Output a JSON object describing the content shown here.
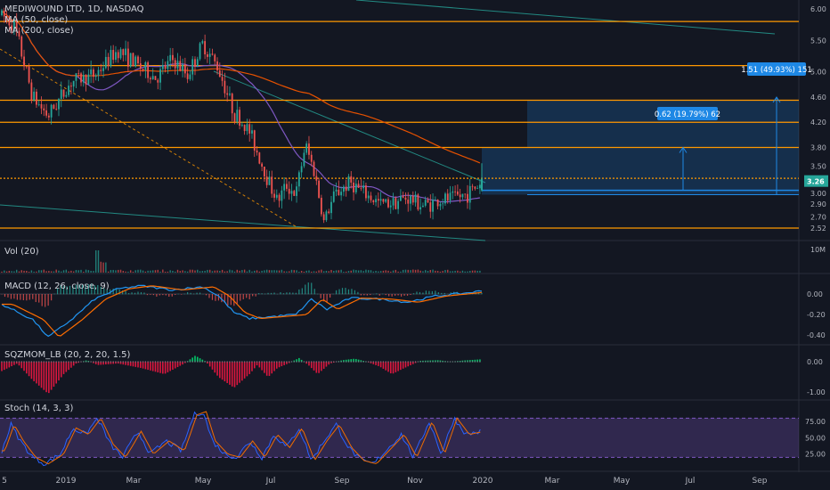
{
  "legend": {
    "title": "MEDIWOUND LTD, 1D, NASDAQ",
    "ma1": "MA (50, close)",
    "ma2": "MA (200, close)",
    "vol": "Vol (20)",
    "macd": "MACD (12, 26, close, 9)",
    "sqz": "SQZMOM_LB (20, 2, 20, 1.5)",
    "stoch": "Stoch (14, 3, 3)"
  },
  "colors": {
    "background": "#131722",
    "up": "#26a69a",
    "down": "#ef5350",
    "hline": "#ff9800",
    "ma50": "#7e57c2",
    "ma200": "#e65100",
    "trend": "#26a69a",
    "target_box": "#1e88e5",
    "macd_line": "#2196f3",
    "signal_line": "#ff6d00",
    "sqz_up": "#00e676",
    "sqz_down": "#ff1744",
    "stoch_k": "#2962ff",
    "stoch_d": "#ef6c00",
    "stoch_band": "#7e57c2"
  },
  "chart_data": [
    {
      "type": "candlestick",
      "title": "MEDIWOUND LTD, 1D, NASDAQ",
      "ylim": [
        2.42,
        6.12
      ],
      "y_ticks": [
        "6.00",
        "5.50",
        "5.00",
        "4.60",
        "4.20",
        "3.80",
        "3.50",
        "3.26",
        "3.00",
        "2.90",
        "2.70",
        "2.52"
      ],
      "last_price_label": "3.26",
      "horizontal_levels": [
        5.8,
        5.1,
        4.55,
        4.2,
        3.8,
        3.31,
        2.52
      ],
      "x_ticks": [
        "5",
        "2019",
        "Mar",
        "May",
        "Jul",
        "Sep",
        "Nov",
        "2020",
        "Mar",
        "May",
        "Jul",
        "Sep"
      ],
      "price_path": [
        [
          0,
          5.9
        ],
        [
          8,
          5.75
        ],
        [
          20,
          4.6
        ],
        [
          30,
          4.3
        ],
        [
          45,
          4.85
        ],
        [
          60,
          4.95
        ],
        [
          75,
          5.35
        ],
        [
          88,
          5.1
        ],
        [
          100,
          4.9
        ],
        [
          110,
          5.2
        ],
        [
          120,
          4.95
        ],
        [
          130,
          5.45
        ],
        [
          140,
          5.05
        ],
        [
          150,
          4.35
        ],
        [
          160,
          4.05
        ],
        [
          170,
          3.4
        ],
        [
          178,
          2.95
        ],
        [
          184,
          3.2
        ],
        [
          190,
          3.05
        ],
        [
          196,
          3.85
        ],
        [
          202,
          3.4
        ],
        [
          208,
          2.62
        ],
        [
          215,
          3.05
        ],
        [
          225,
          3.25
        ],
        [
          235,
          3.05
        ],
        [
          245,
          2.9
        ],
        [
          255,
          2.95
        ],
        [
          262,
          3.0
        ],
        [
          272,
          2.88
        ],
        [
          282,
          2.95
        ],
        [
          292,
          3.0
        ],
        [
          300,
          3.05
        ],
        [
          310,
          3.25
        ]
      ],
      "annotations": [
        {
          "label": "0.62 (19.79%) 62",
          "target": 3.8
        },
        {
          "label": "1.51 (49.93%) 151",
          "target": 4.6
        }
      ],
      "target_zone": [
        3.05,
        4.55
      ]
    },
    {
      "type": "bar",
      "title": "Vol (20)",
      "y_ticks": [
        "10M"
      ]
    },
    {
      "type": "line",
      "title": "MACD (12, 26, close, 9)",
      "ylim": [
        -0.46,
        0.1
      ],
      "y_ticks": [
        "0.00",
        "-0.20",
        "-0.40"
      ],
      "macd_path": [
        [
          0,
          -0.1
        ],
        [
          20,
          -0.25
        ],
        [
          30,
          -0.42
        ],
        [
          45,
          -0.25
        ],
        [
          60,
          -0.05
        ],
        [
          75,
          0.05
        ],
        [
          90,
          0.08
        ],
        [
          110,
          0.04
        ],
        [
          130,
          0.07
        ],
        [
          140,
          -0.02
        ],
        [
          150,
          -0.18
        ],
        [
          160,
          -0.24
        ],
        [
          175,
          -0.22
        ],
        [
          190,
          -0.2
        ],
        [
          200,
          -0.05
        ],
        [
          210,
          -0.15
        ],
        [
          225,
          -0.04
        ],
        [
          245,
          -0.05
        ],
        [
          262,
          -0.08
        ],
        [
          280,
          -0.02
        ],
        [
          300,
          0.01
        ],
        [
          310,
          0.03
        ]
      ]
    },
    {
      "type": "bar",
      "title": "SQZMOM_LB (20, 2, 20, 1.5)",
      "ylim": [
        -1.1,
        0.2
      ],
      "y_ticks": [
        "0.00",
        "-1.00"
      ],
      "momentum_path": [
        [
          0,
          -0.3
        ],
        [
          10,
          -0.05
        ],
        [
          20,
          -0.6
        ],
        [
          30,
          -1.05
        ],
        [
          40,
          -0.4
        ],
        [
          48,
          -0.05
        ],
        [
          55,
          0.05
        ],
        [
          62,
          -0.1
        ],
        [
          75,
          -0.05
        ],
        [
          90,
          -0.2
        ],
        [
          105,
          -0.4
        ],
        [
          118,
          -0.05
        ],
        [
          125,
          0.2
        ],
        [
          132,
          0.0
        ],
        [
          140,
          -0.5
        ],
        [
          150,
          -0.85
        ],
        [
          160,
          -0.4
        ],
        [
          165,
          -0.1
        ],
        [
          172,
          -0.5
        ],
        [
          178,
          -0.2
        ],
        [
          185,
          -0.05
        ],
        [
          192,
          0.12
        ],
        [
          198,
          -0.1
        ],
        [
          204,
          -0.4
        ],
        [
          212,
          -0.05
        ],
        [
          220,
          0.05
        ],
        [
          228,
          0.1
        ],
        [
          236,
          0.0
        ],
        [
          244,
          -0.15
        ],
        [
          252,
          -0.4
        ],
        [
          260,
          -0.2
        ],
        [
          270,
          0.03
        ],
        [
          282,
          0.05
        ],
        [
          290,
          0.0
        ],
        [
          298,
          0.04
        ],
        [
          310,
          0.08
        ]
      ]
    },
    {
      "type": "line",
      "title": "Stoch (14, 3, 3)",
      "ylim": [
        0,
        100
      ],
      "y_ticks": [
        "75.00",
        "50.00",
        "25.00"
      ],
      "band": [
        20,
        80
      ],
      "stoch_path": [
        [
          0,
          30
        ],
        [
          6,
          70
        ],
        [
          12,
          45
        ],
        [
          20,
          20
        ],
        [
          28,
          10
        ],
        [
          38,
          25
        ],
        [
          46,
          65
        ],
        [
          54,
          55
        ],
        [
          62,
          80
        ],
        [
          70,
          40
        ],
        [
          78,
          20
        ],
        [
          88,
          60
        ],
        [
          96,
          25
        ],
        [
          106,
          45
        ],
        [
          116,
          30
        ],
        [
          124,
          85
        ],
        [
          130,
          90
        ],
        [
          136,
          45
        ],
        [
          144,
          25
        ],
        [
          152,
          20
        ],
        [
          160,
          45
        ],
        [
          168,
          20
        ],
        [
          176,
          55
        ],
        [
          184,
          35
        ],
        [
          192,
          65
        ],
        [
          200,
          15
        ],
        [
          208,
          45
        ],
        [
          216,
          70
        ],
        [
          224,
          35
        ],
        [
          232,
          15
        ],
        [
          240,
          10
        ],
        [
          248,
          30
        ],
        [
          258,
          55
        ],
        [
          266,
          20
        ],
        [
          276,
          75
        ],
        [
          284,
          25
        ],
        [
          292,
          80
        ],
        [
          300,
          55
        ],
        [
          310,
          60
        ]
      ]
    }
  ]
}
